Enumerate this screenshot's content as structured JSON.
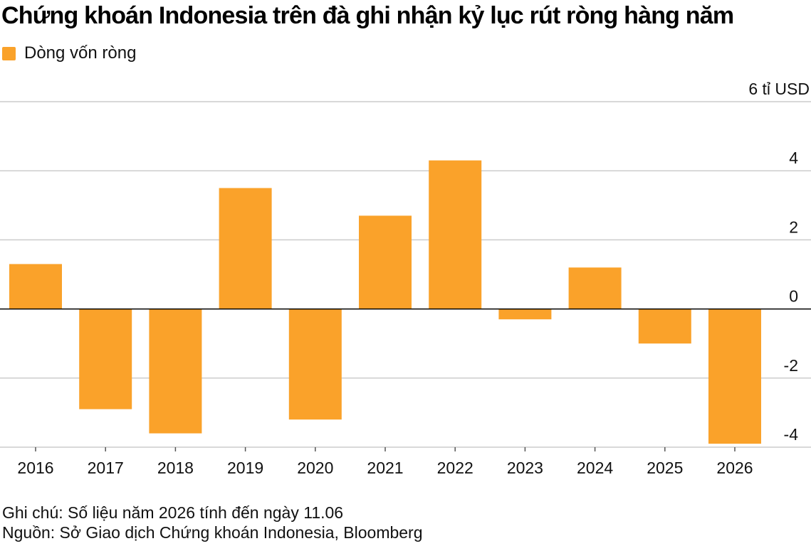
{
  "title": "Chứng khoán Indonesia trên đà ghi nhận kỷ lục rút ròng hàng năm",
  "note": "Ghi chú: Số liệu năm 2026 tính đến ngày 11.06",
  "source": "Nguồn: Sở Giao dịch Chứng khoán Indonesia, Bloomberg",
  "colors": {
    "bar": "#FAA22A",
    "grid": "#cccccc",
    "zero_line": "#000000"
  },
  "chart_data": {
    "type": "bar",
    "categories": [
      "2016",
      "2017",
      "2018",
      "2019",
      "2020",
      "2021",
      "2022",
      "2023",
      "2024",
      "2025",
      "2026"
    ],
    "series": [
      {
        "name": "Dòng vốn ròng",
        "values": [
          1.3,
          -2.9,
          -3.6,
          3.5,
          -3.2,
          2.7,
          4.3,
          -0.3,
          1.2,
          -1.0,
          -3.9
        ]
      }
    ],
    "y_unit_label": "6 tỉ USD",
    "ylim": [
      -4,
      6
    ],
    "y_ticks": [
      {
        "value": 6,
        "label": "6 tỉ USD"
      },
      {
        "value": 4,
        "label": "4"
      },
      {
        "value": 2,
        "label": "2"
      },
      {
        "value": 0,
        "label": "0"
      },
      {
        "value": -2,
        "label": "-2"
      },
      {
        "value": -4,
        "label": "-4"
      }
    ],
    "grid": true,
    "legend_position": "top-left",
    "y_axis_side": "right"
  }
}
